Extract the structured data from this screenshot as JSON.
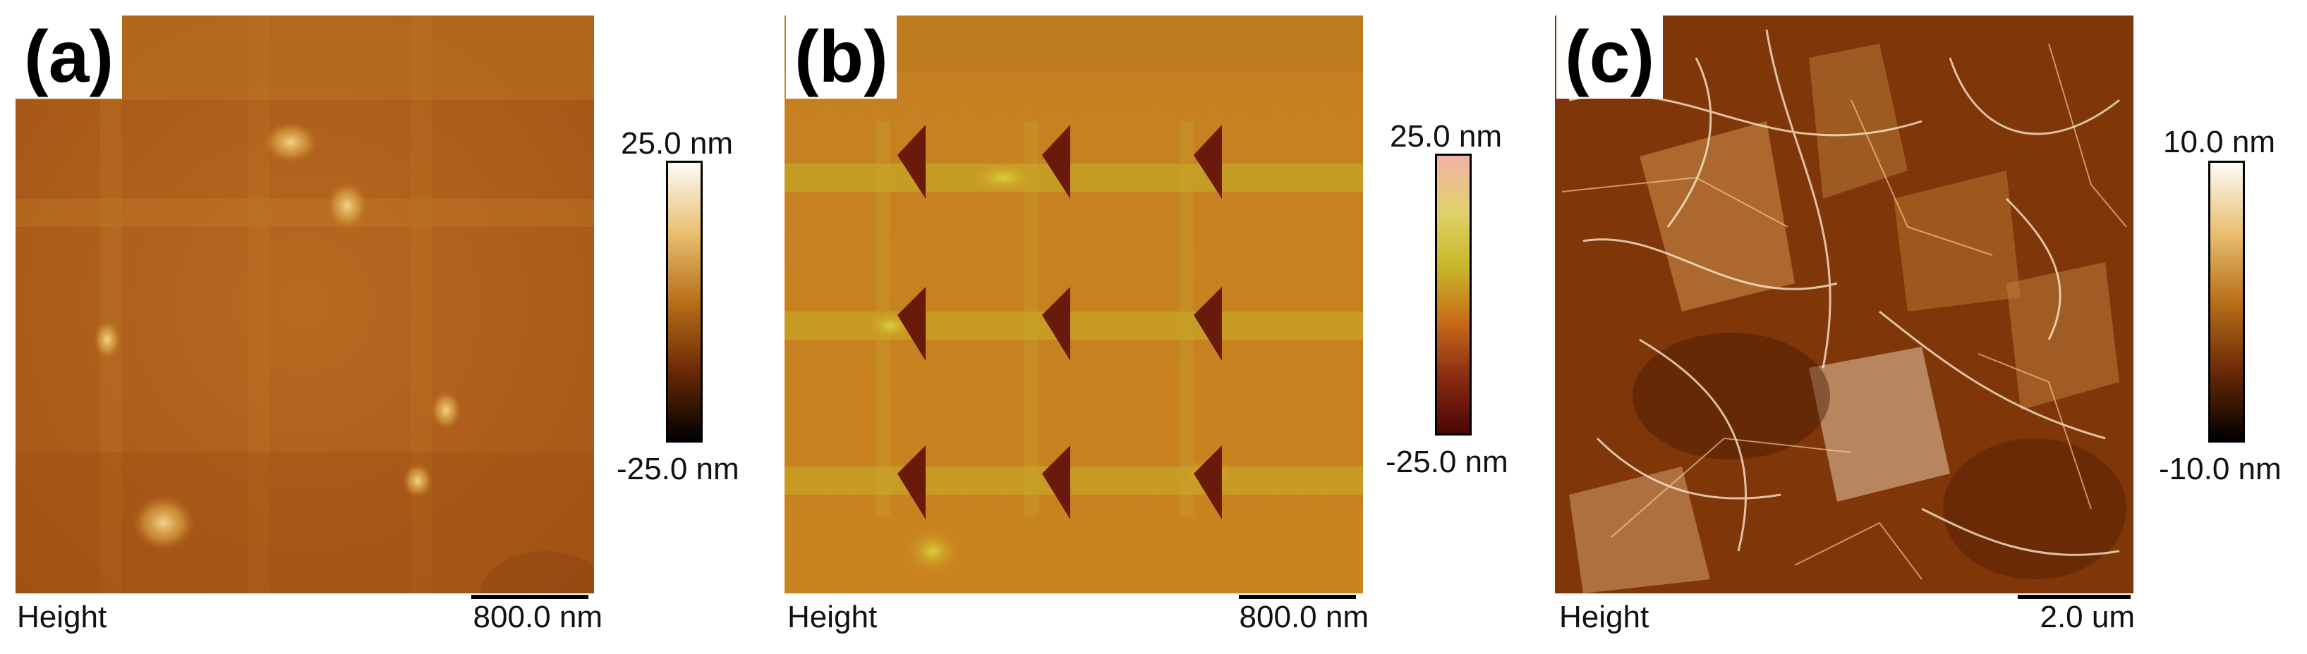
{
  "panels": [
    {
      "label": "(a)",
      "footer_left": "Height",
      "scale_bar": "800.0 nm",
      "colorbar_max": "25.0 nm",
      "colorbar_min": "-25.0 nm",
      "colormap": [
        "#fbfbf6",
        "#e8c070",
        "#b8701a",
        "#6a2a05",
        "#000000"
      ]
    },
    {
      "label": "(b)",
      "footer_left": "Height",
      "scale_bar": "800.0 nm",
      "colorbar_max": "25.0 nm",
      "colorbar_min": "-25.0 nm",
      "colormap": [
        "#f2b3a8",
        "#e0d26a",
        "#c9b72a",
        "#c76a18",
        "#8a2a12",
        "#4a0606"
      ]
    },
    {
      "label": "(c)",
      "footer_left": "Height",
      "scale_bar": "2.0 um",
      "colorbar_max": "10.0 nm",
      "colorbar_min": "-10.0 nm",
      "colormap": [
        "#fbfbf6",
        "#e8c070",
        "#b8701a",
        "#6a2a05",
        "#000000"
      ]
    }
  ]
}
